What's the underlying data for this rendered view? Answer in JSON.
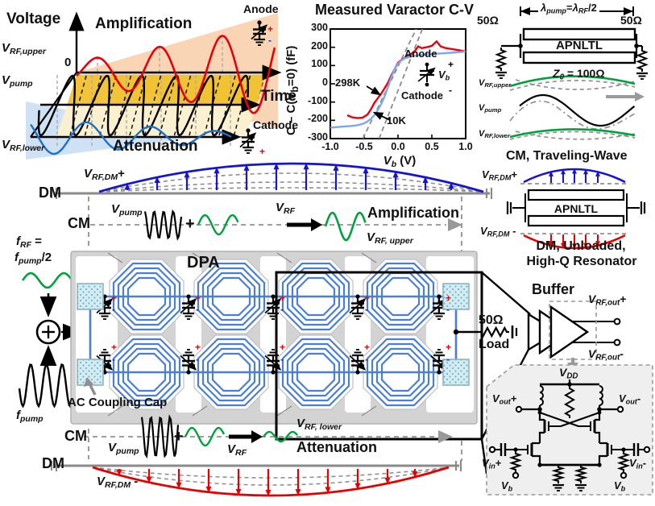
{
  "tl": {
    "voltage": "Voltage",
    "amplification": "Amplification",
    "attenuation": "Attenuation",
    "v_rf_upper": {
      "m": "V",
      "s": "RF,upper"
    },
    "zero": "0",
    "v_pump": {
      "m": "V",
      "s": "pump"
    },
    "time": "Time",
    "v_rf_lower": {
      "m": "V",
      "s": "RF,lower"
    },
    "anode": "Anode",
    "cathode": "Cathode",
    "plus": "+",
    "minus": "-"
  },
  "cv": {
    "title": "Measured Varactor C-V",
    "ylabel": {
      "p1": "C – C(V",
      "s": "b",
      "p2": "=0) (fF)"
    },
    "xlabel": {
      "m": "V",
      "s": "b",
      "x": " (V)"
    },
    "yticks": [
      "300",
      "200",
      "100",
      "0",
      "-100",
      "-200",
      "-300"
    ],
    "xticks": [
      "-1.0",
      "-0.5",
      "0.0",
      "0.5",
      "1.0"
    ],
    "curve_298k": "298K",
    "curve_10k": "10K",
    "anode": "Anode",
    "cathode": "Cathode",
    "vb": {
      "m": "V",
      "s": "b"
    },
    "plus": "+",
    "minus": "-"
  },
  "tr": {
    "lam": {
      "m1": "λ",
      "s1": "pump",
      "eq": "=",
      "m2": "λ",
      "s2": "RF",
      "x": "/2"
    },
    "ohm": "50Ω",
    "apnltl": "APNLTL",
    "z0": {
      "m": "Z",
      "s": "0",
      "x": " = 100Ω"
    },
    "v_rf_upper": {
      "m": "V",
      "s": "RF,upper"
    },
    "v_pump": {
      "m": "V",
      "s": "pump"
    },
    "v_rf_lower": {
      "m": "V",
      "s": "RF,lower"
    },
    "caption": "CM, Traveling-Wave"
  },
  "mid": {
    "v_rf_dm_plus": {
      "m": "V",
      "s": "RF,DM",
      "x": "+"
    },
    "dm": "DM",
    "cm": "CM",
    "v_pump": {
      "m": "V",
      "s": "pump"
    },
    "plus": "+",
    "v_rf": {
      "m": "V",
      "s": "RF"
    },
    "amplification": "Amplification",
    "v_rf_upper": {
      "m": "V",
      "s": "RF, upper"
    }
  },
  "res": {
    "v_plus": {
      "m": "V",
      "s": "RF,DM",
      "x": "+"
    },
    "apnltl": "APNLTL",
    "v_minus": {
      "m": "V",
      "s": "RF,DM",
      "x": " -"
    },
    "caption1": "DM, Unloaded,",
    "caption2": "High-Q Resonator"
  },
  "lf": {
    "f_rf": {
      "m": "f",
      "s": "RF",
      "x": " ="
    },
    "f_pump_half": {
      "m": "f",
      "s": "pump",
      "x": "/2"
    },
    "f_pump": {
      "m": "f",
      "s": "pump"
    }
  },
  "dpa": {
    "title": "DPA",
    "ac_label": "AC Coupling Cap",
    "plus": "+",
    "minus": "-"
  },
  "out": {
    "ohm": "50Ω",
    "load": "Load",
    "buffer": "Buffer",
    "v_out_p": {
      "m": "V",
      "s": "RF,out",
      "x": "+"
    },
    "v_out_m": {
      "m": "V",
      "s": "RF,out",
      "x": "-"
    }
  },
  "sch": {
    "vdd": {
      "m": "V",
      "s": "DD"
    },
    "v_out_p": {
      "m": "V",
      "s": "out",
      "x": "+"
    },
    "v_out_m": {
      "m": "V",
      "s": "out",
      "x": "-"
    },
    "v_in_p": {
      "m": "V",
      "s": "in",
      "x": "+"
    },
    "v_in_m": {
      "m": "V",
      "s": "in",
      "x": "-"
    },
    "vb": {
      "m": "V",
      "s": "b"
    }
  },
  "bot": {
    "cm": "CM",
    "dm": "DM",
    "v_pump": {
      "m": "V",
      "s": "pump"
    },
    "plus": "+",
    "v_rf": {
      "m": "V",
      "s": "RF"
    },
    "v_rf_lower": {
      "m": "V",
      "s": "RF, lower"
    },
    "attenuation": "Attenuation",
    "v_rf_dm_minus": {
      "m": "V",
      "s": "RF,DM",
      "x": " -"
    }
  },
  "chart_data": {
    "type": "line",
    "title": "Measured Varactor C-V",
    "xlabel": "Vb (V)",
    "ylabel": "C - C(Vb=0) (fF)",
    "xlim": [
      -1.0,
      1.0
    ],
    "ylim": [
      -300,
      300
    ],
    "xticks": [
      -1.0,
      -0.5,
      0.0,
      0.5,
      1.0
    ],
    "yticks": [
      -300,
      -200,
      -100,
      0,
      100,
      200,
      300
    ],
    "grid": false,
    "legend_position": "none",
    "series": [
      {
        "name": "298K",
        "color": "#e8000d",
        "x": [
          -0.75,
          -0.68,
          -0.6,
          -0.52,
          -0.45,
          -0.4,
          -0.35,
          -0.3,
          -0.25,
          -0.2,
          -0.15,
          -0.1,
          -0.05,
          0,
          0.05,
          0.1,
          0.15,
          0.2,
          0.25,
          0.3,
          0.35,
          0.42,
          0.5,
          0.57,
          0.63,
          0.7,
          0.8,
          0.9,
          1.0
        ],
        "y": [
          -172,
          -183,
          -188,
          -185,
          -168,
          -140,
          -105,
          -80,
          -55,
          -25,
          5,
          45,
          80,
          115,
          130,
          142,
          155,
          165,
          180,
          205,
          195,
          200,
          208,
          232,
          205,
          196,
          190,
          184,
          176
        ]
      },
      {
        "name": "10K",
        "color": "#7da7f0",
        "x": [
          -1.0,
          -0.9,
          -0.8,
          -0.7,
          -0.6,
          -0.55,
          -0.5,
          -0.45,
          -0.4,
          -0.35,
          -0.3,
          -0.25,
          -0.2,
          -0.15,
          -0.1,
          -0.05,
          0,
          0.05,
          0.1,
          0.2,
          0.3,
          0.4,
          0.5,
          0.7,
          0.85,
          1.0
        ],
        "y": [
          -240,
          -237,
          -234,
          -231,
          -227,
          -222,
          -216,
          -206,
          -192,
          -172,
          -145,
          -112,
          -70,
          -20,
          35,
          80,
          110,
          128,
          140,
          150,
          156,
          160,
          163,
          168,
          172,
          176
        ]
      }
    ],
    "guides": [
      {
        "x1": -0.52,
        "y1": -300,
        "x2": 0.27,
        "y2": 300
      },
      {
        "x1": -0.28,
        "y1": -300,
        "x2": 0.36,
        "y2": 300
      }
    ],
    "annotations": [
      "298K",
      "10K"
    ]
  }
}
